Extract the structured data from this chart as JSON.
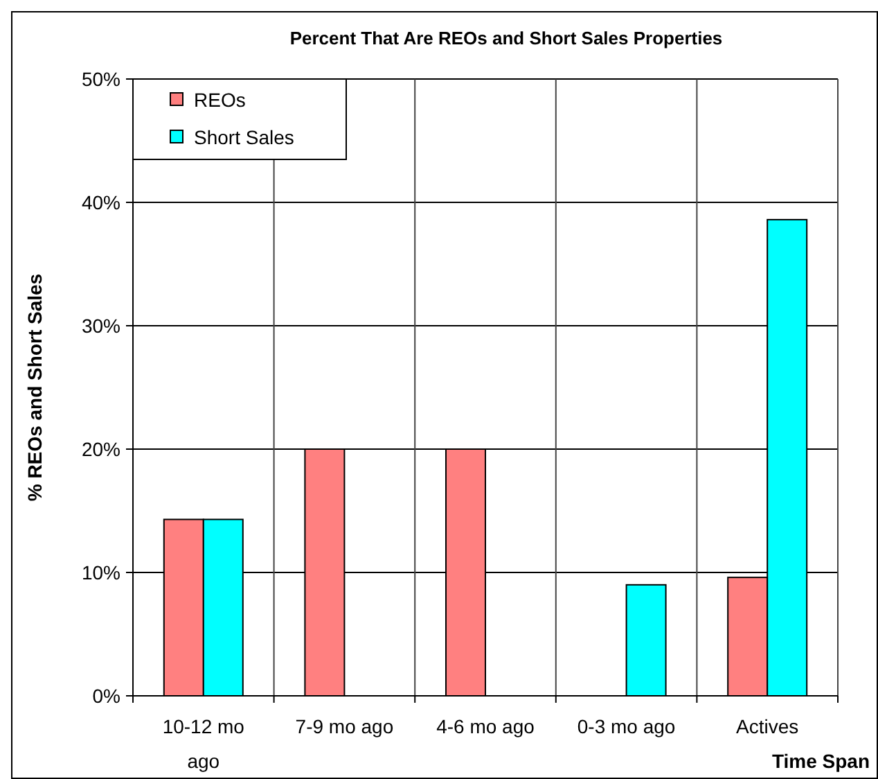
{
  "chart_data": {
    "type": "bar",
    "title": "Percent That Are REOs and Short Sales Properties",
    "xlabel": "Time Span",
    "ylabel": "% REOs and Short Sales",
    "categories": [
      "10-12 mo ago",
      "7-9 mo ago",
      "4-6 mo ago",
      "0-3 mo ago",
      "Actives"
    ],
    "series": [
      {
        "name": "REOs",
        "color": "#ff8080",
        "values": [
          14.3,
          20,
          20,
          0,
          9.6
        ]
      },
      {
        "name": "Short Sales",
        "color": "#00ffff",
        "values": [
          14.3,
          0,
          0,
          9.0,
          38.6
        ]
      }
    ],
    "ylim": [
      0,
      50
    ],
    "yticks": [
      {
        "value": 0,
        "label": "0%"
      },
      {
        "value": 10,
        "label": "10%"
      },
      {
        "value": 20,
        "label": "20%"
      },
      {
        "value": 30,
        "label": "30%"
      },
      {
        "value": 40,
        "label": "40%"
      },
      {
        "value": 50,
        "label": "50%"
      }
    ],
    "grid": true,
    "legend": "top left"
  }
}
